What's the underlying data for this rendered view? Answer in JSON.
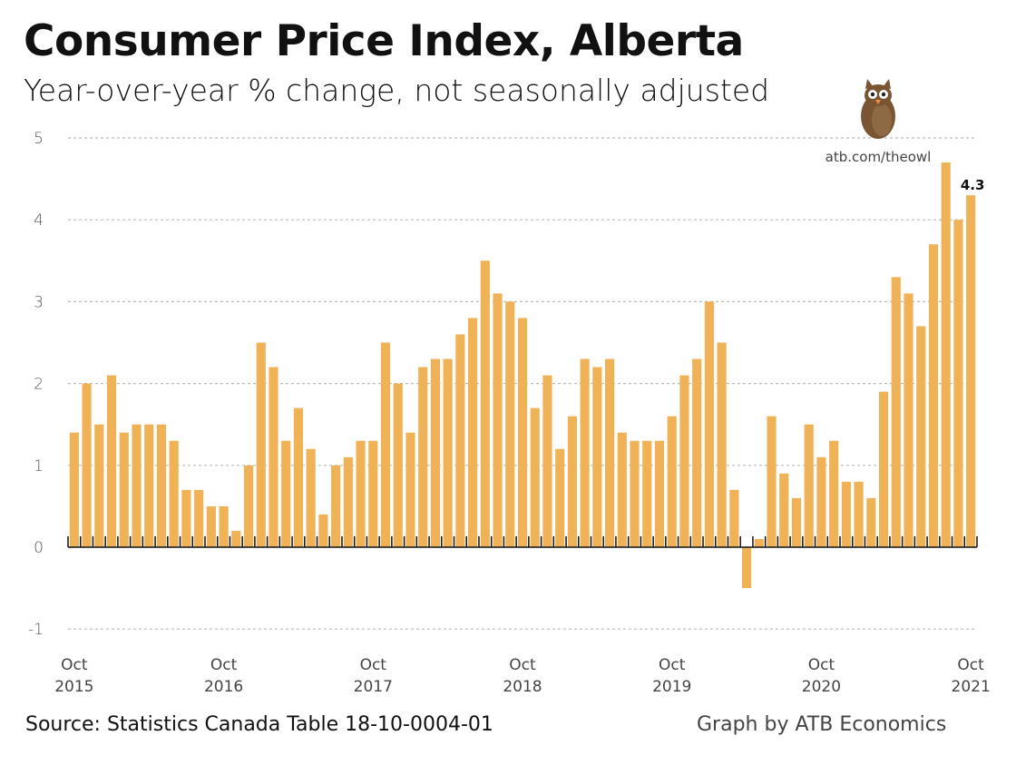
{
  "title": "Consumer Price Index, Alberta",
  "subtitle": "Year-over-year % change, not seasonally adjusted",
  "source": "Source: Statistics Canada Table 18-10-0004-01",
  "credit": "Graph by ATB Economics",
  "logo": {
    "icon": "owl-icon",
    "link_text": "atb.com/theowl"
  },
  "colors": {
    "bar": "#efb257",
    "grid": "#bbbbbb",
    "axis": "#111111"
  },
  "chart_data": {
    "type": "bar",
    "title": "Consumer Price Index, Alberta",
    "subtitle": "Year-over-year % change, not seasonally adjusted",
    "xlabel": "",
    "ylabel": "",
    "ylim": [
      -1,
      5
    ],
    "yticks": [
      -1,
      0,
      1,
      2,
      3,
      4,
      5
    ],
    "grid": true,
    "start": "Oct 2015",
    "end": "Oct 2021",
    "xtick_labels": [
      {
        "month": "Oct",
        "year": "2015",
        "index": 0
      },
      {
        "month": "Oct",
        "year": "2016",
        "index": 12
      },
      {
        "month": "Oct",
        "year": "2017",
        "index": 24
      },
      {
        "month": "Oct",
        "year": "2018",
        "index": 36
      },
      {
        "month": "Oct",
        "year": "2019",
        "index": 48
      },
      {
        "month": "Oct",
        "year": "2020",
        "index": 60
      },
      {
        "month": "Oct",
        "year": "2021",
        "index": 72
      }
    ],
    "values": [
      1.4,
      2.0,
      1.5,
      2.1,
      1.4,
      1.5,
      1.5,
      1.5,
      1.3,
      0.7,
      0.7,
      0.5,
      0.5,
      0.2,
      1.0,
      2.5,
      2.2,
      1.3,
      1.7,
      1.2,
      0.4,
      1.0,
      1.1,
      1.3,
      1.3,
      2.5,
      2.0,
      1.4,
      2.2,
      2.3,
      2.3,
      2.6,
      2.8,
      3.5,
      3.1,
      3.0,
      2.8,
      1.7,
      2.1,
      1.2,
      1.6,
      2.3,
      2.2,
      2.3,
      1.4,
      1.3,
      1.3,
      1.3,
      1.6,
      2.1,
      2.3,
      3.0,
      2.5,
      0.7,
      -0.5,
      0.1,
      1.6,
      0.9,
      0.6,
      1.5,
      1.1,
      1.3,
      0.8,
      0.8,
      0.6,
      1.9,
      3.3,
      3.1,
      2.7,
      3.7,
      4.7,
      4.0,
      4.3
    ],
    "annotations": [
      {
        "index": 72,
        "text": "4.3"
      }
    ]
  }
}
